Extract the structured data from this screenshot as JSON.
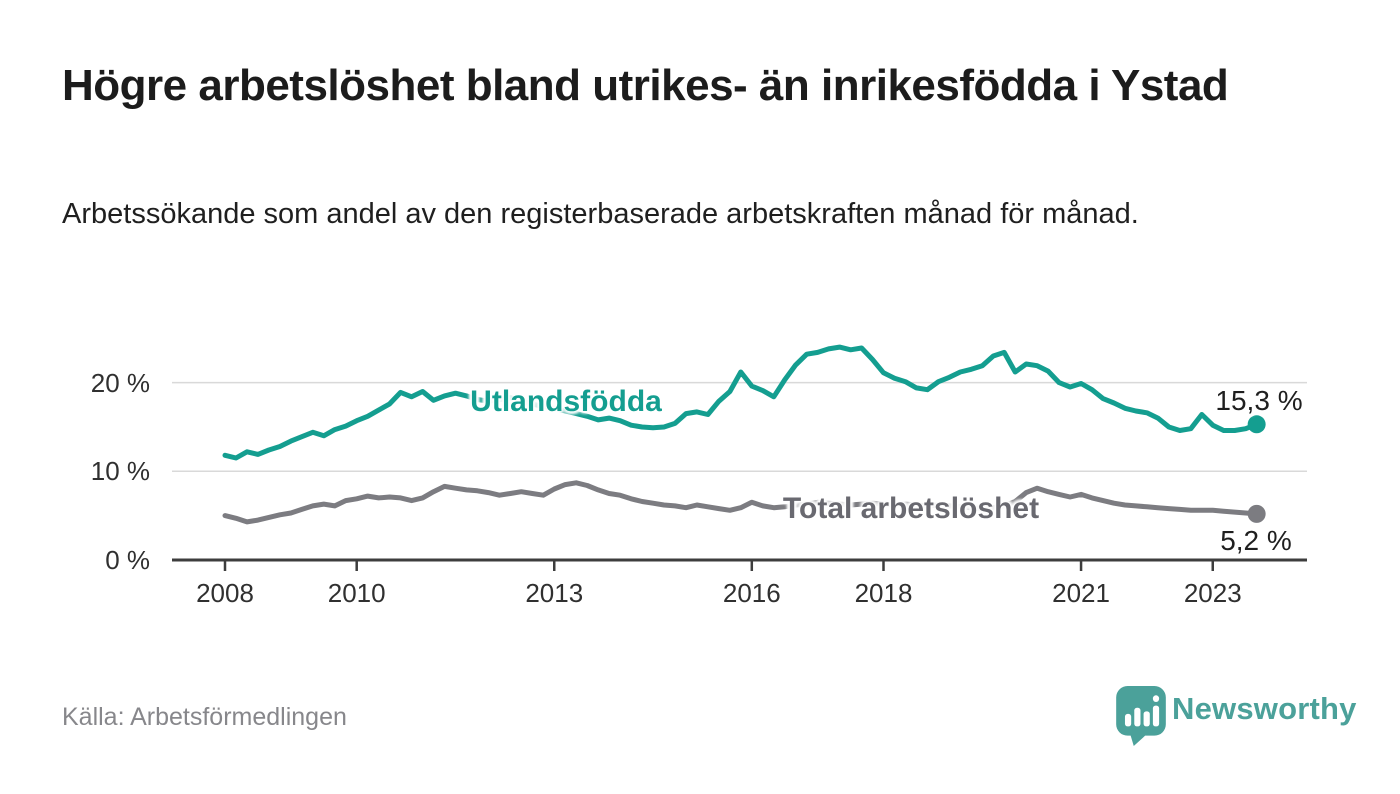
{
  "page": {
    "title": "Högre arbetslöshet bland utrikes- än inrikesfödda i Ystad",
    "subtitle": "Arbetssökande som andel av den registerbaserade arbetskraften månad för månad.",
    "source": "Källa: Arbetsförmedlingen",
    "brand": {
      "name": "Newsworthy",
      "logo_icon": "bar-chart-speech-bubble-icon",
      "color": "#4ba19a"
    }
  },
  "chart_data": {
    "type": "line",
    "title": "Högre arbetslöshet bland utrikes- än inrikesfödda i Ystad",
    "subtitle": "Arbetssökande som andel av den registerbaserade arbetskraften månad för månad.",
    "unit": "%",
    "grid": "horizontal",
    "legend": "inline-labels",
    "x_start_year": 2008.0,
    "x_step_years": 0.166667,
    "x_end_year": 2023.667,
    "x_axis_range_years": [
      2007.2,
      2024.45
    ],
    "ylim": [
      0,
      26.5
    ],
    "x_ticks": [
      {
        "value": 2008,
        "label": "2008"
      },
      {
        "value": 2010,
        "label": "2010"
      },
      {
        "value": 2013,
        "label": "2013"
      },
      {
        "value": 2016,
        "label": "2016"
      },
      {
        "value": 2018,
        "label": "2018"
      },
      {
        "value": 2021,
        "label": "2021"
      },
      {
        "value": 2023,
        "label": "2023"
      }
    ],
    "y_ticks": [
      {
        "value": 0,
        "label": "0 %"
      },
      {
        "value": 10,
        "label": "10 %"
      },
      {
        "value": 20,
        "label": "20 %"
      }
    ],
    "series": [
      {
        "name": "Utlandsfödda",
        "color": "#149e90",
        "end_value": 15.3,
        "end_label": "15,3 %",
        "values": [
          11.8,
          11.5,
          12.2,
          11.9,
          12.4,
          12.8,
          13.4,
          13.9,
          14.4,
          14.0,
          14.7,
          15.1,
          15.7,
          16.2,
          16.9,
          17.6,
          18.9,
          18.4,
          19.0,
          18.0,
          18.5,
          18.8,
          18.5,
          18.1,
          17.9,
          18.1,
          18.3,
          17.9,
          17.6,
          17.3,
          17.1,
          16.8,
          16.5,
          16.2,
          15.8,
          16.0,
          15.7,
          15.2,
          15.0,
          14.9,
          15.0,
          15.4,
          16.5,
          16.7,
          16.4,
          17.9,
          19.0,
          21.2,
          19.6,
          19.1,
          18.4,
          20.3,
          22.0,
          23.2,
          23.4,
          23.8,
          24.0,
          23.7,
          23.9,
          22.6,
          21.1,
          20.5,
          20.1,
          19.4,
          19.2,
          20.1,
          20.6,
          21.2,
          21.5,
          21.9,
          23.0,
          23.4,
          21.2,
          22.1,
          21.9,
          21.3,
          20.0,
          19.5,
          19.9,
          19.2,
          18.2,
          17.7,
          17.1,
          16.8,
          16.6,
          16.0,
          15.0,
          14.6,
          14.8,
          16.4,
          15.2,
          14.6,
          14.6,
          14.8,
          15.3
        ]
      },
      {
        "name": "Total arbetslöshet",
        "color": "#7c7c81",
        "end_value": 5.2,
        "end_label": "5,2 %",
        "values": [
          5.0,
          4.7,
          4.3,
          4.5,
          4.8,
          5.1,
          5.3,
          5.7,
          6.1,
          6.3,
          6.1,
          6.7,
          6.9,
          7.2,
          7.0,
          7.1,
          7.0,
          6.7,
          7.0,
          7.7,
          8.3,
          8.1,
          7.9,
          7.8,
          7.6,
          7.3,
          7.5,
          7.7,
          7.5,
          7.3,
          8.0,
          8.5,
          8.7,
          8.4,
          7.9,
          7.5,
          7.3,
          6.9,
          6.6,
          6.4,
          6.2,
          6.1,
          5.9,
          6.2,
          6.0,
          5.8,
          5.6,
          5.9,
          6.5,
          6.1,
          5.9,
          6.0,
          6.2,
          6.3,
          6.5,
          6.4,
          6.3,
          6.2,
          6.3,
          6.4,
          6.3,
          6.2,
          6.3,
          6.2,
          6.1,
          6.2,
          6.1,
          6.0,
          5.9,
          5.8,
          5.9,
          6.1,
          6.6,
          7.6,
          8.1,
          7.7,
          7.4,
          7.1,
          7.4,
          7.0,
          6.7,
          6.4,
          6.2,
          6.1,
          6.0,
          5.9,
          5.8,
          5.7,
          5.6,
          5.6,
          5.6,
          5.5,
          5.4,
          5.3,
          5.2
        ]
      }
    ],
    "colors": {
      "axis": "#3d3d3d",
      "gridline": "#d9d9d9",
      "tick_text": "#303030"
    }
  }
}
